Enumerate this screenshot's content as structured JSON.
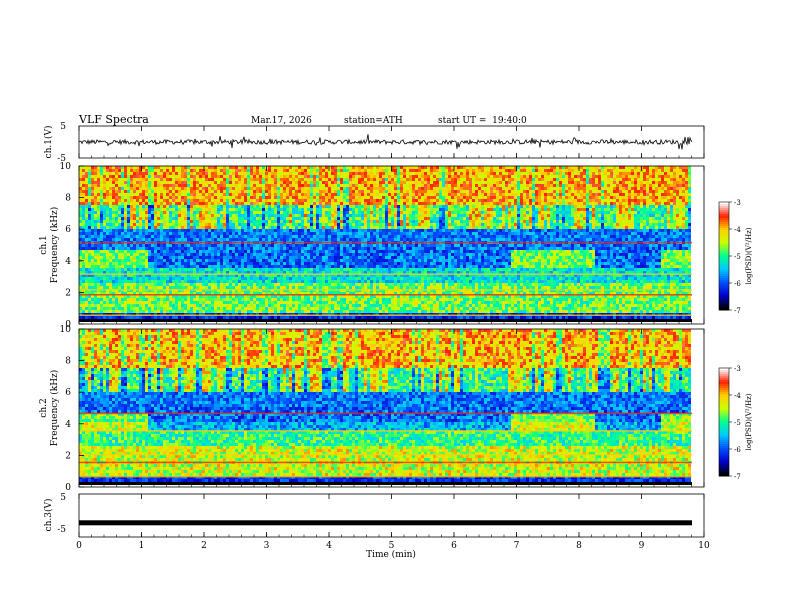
{
  "header": {
    "title": "VLF Spectra",
    "date": "Mar.17, 2026",
    "station": "station=ATH",
    "start": "start UT =  19:40:0"
  },
  "chart_data": {
    "type": "heatmap",
    "x_axis": {
      "label": "Time (min)",
      "range": [
        0,
        10
      ],
      "ticks": [
        "0",
        "1",
        "2",
        "3",
        "4",
        "5",
        "6",
        "7",
        "8",
        "9",
        "10"
      ]
    },
    "panels": [
      {
        "name": "ch.1(V)",
        "kind": "waveform",
        "ylabel": "ch.1(V)",
        "ylim": [
          -5,
          5
        ],
        "ticks": [
          "5",
          "-5"
        ],
        "level": 0
      },
      {
        "name": "ch.1 spectrogram",
        "kind": "spectrogram",
        "ylabel_top": "ch.1",
        "ylabel": "Frequency (kHz)",
        "ylim": [
          0,
          10
        ],
        "ticks": [
          "0",
          "2",
          "4",
          "6",
          "8",
          "10"
        ],
        "colorbar": {
          "label": "log(PSD)(V²/Hz)",
          "range": [
            -7,
            -3
          ],
          "ticks": [
            "-3",
            "-4",
            "-5",
            "-6",
            "-7"
          ]
        }
      },
      {
        "name": "ch.2 spectrogram",
        "kind": "spectrogram",
        "ylabel_top": "ch.2",
        "ylabel": "Frequency (kHz)",
        "ylim": [
          0,
          10
        ],
        "ticks": [
          "0",
          "2",
          "4",
          "6",
          "8",
          "10"
        ],
        "colorbar": {
          "label": "log(PSD)(V²/Hz)",
          "range": [
            -7,
            -3
          ],
          "ticks": [
            "-3",
            "-4",
            "-5",
            "-6",
            "-7"
          ]
        }
      },
      {
        "name": "ch.3(V)",
        "kind": "waveform",
        "ylabel": "ch.3(V)",
        "ylim": [
          -5,
          5
        ],
        "ticks": [
          "5",
          "-5"
        ],
        "level": -1.7
      }
    ],
    "grid": false
  },
  "colors": {
    "scale": [
      "#000000",
      "#0000c8",
      "#0050ff",
      "#00c8ff",
      "#00ff90",
      "#c8ff00",
      "#ffd000",
      "#ff2000",
      "#ffffff"
    ]
  }
}
